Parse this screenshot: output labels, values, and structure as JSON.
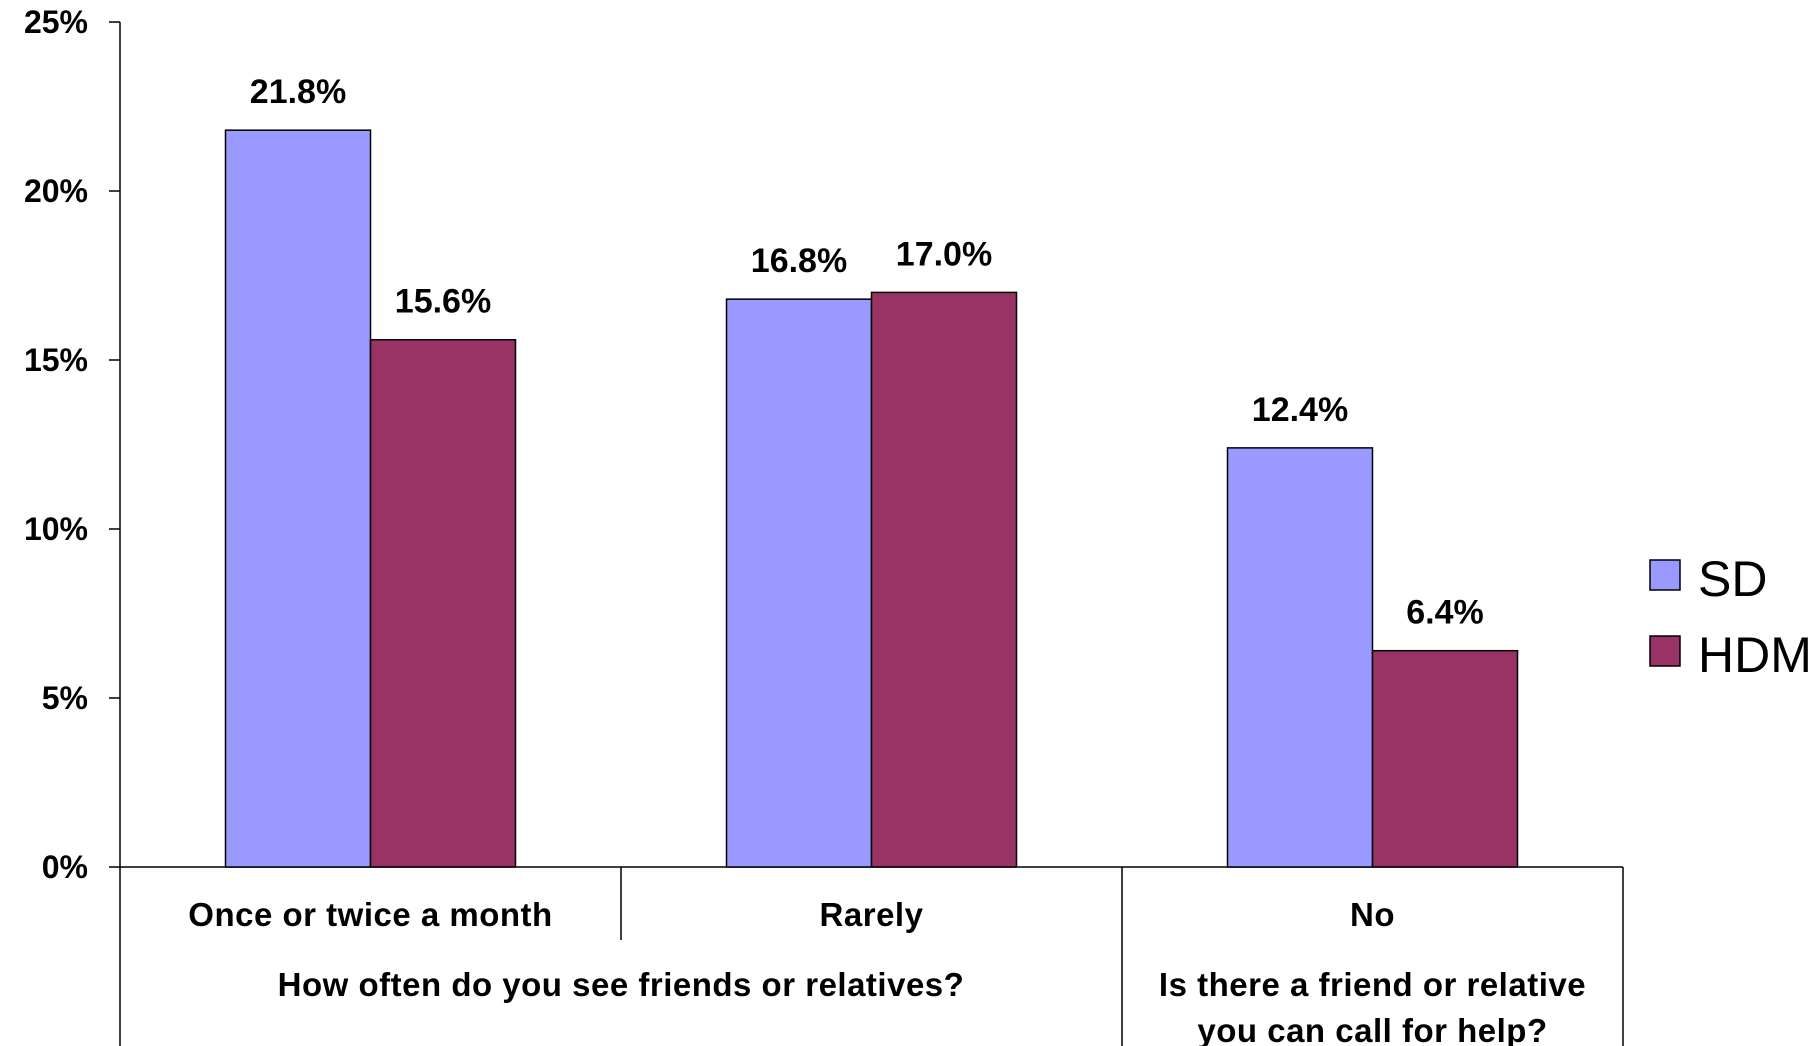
{
  "chart_data": {
    "type": "bar",
    "categories": [
      "Once or twice a month",
      "Rarely",
      "No"
    ],
    "groups": [
      {
        "lines": [
          "How often do you see friends or relatives?"
        ],
        "categories": [
          "Once or twice a month",
          "Rarely"
        ]
      },
      {
        "lines": [
          "Is there a friend or relative",
          "you can call for help?"
        ],
        "categories": [
          "No"
        ]
      }
    ],
    "series": [
      {
        "name": "SD",
        "values": [
          21.8,
          16.8,
          12.4
        ],
        "labels": [
          "21.8%",
          "16.8%",
          "12.4%"
        ],
        "color": "#9999ff"
      },
      {
        "name": "HDM",
        "values": [
          15.6,
          17.0,
          6.4
        ],
        "labels": [
          "15.6%",
          "17.0%",
          "6.4%"
        ],
        "color": "#993366"
      }
    ],
    "ylim": [
      0,
      25
    ],
    "yticks": [
      0,
      5,
      10,
      15,
      20,
      25
    ],
    "ytick_labels": [
      "0%",
      "5%",
      "10%",
      "15%",
      "20%",
      "25%"
    ],
    "grid": false,
    "legend": "right"
  }
}
